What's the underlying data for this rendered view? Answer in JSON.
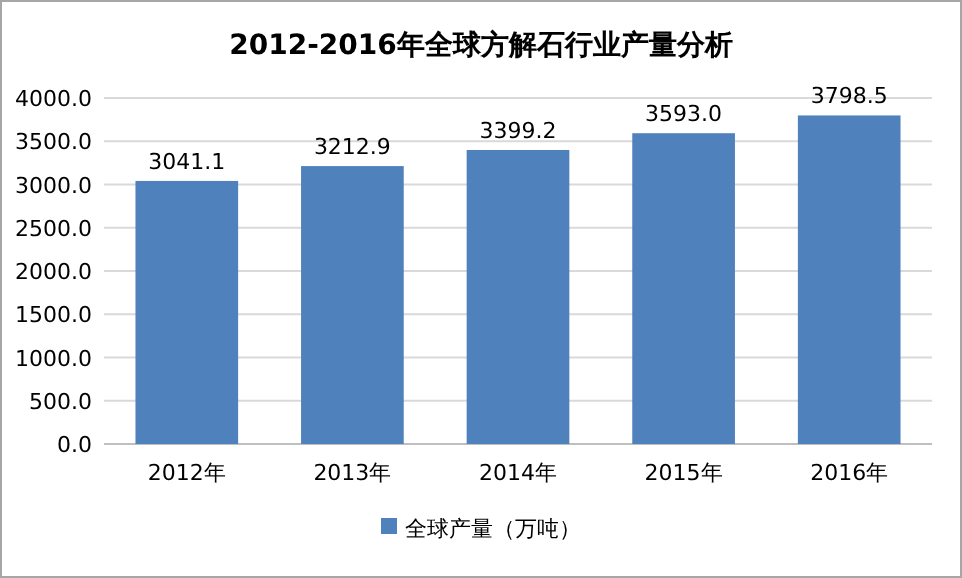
{
  "chart_data": {
    "type": "bar",
    "title": "2012-2016年全球方解石行业产量分析",
    "categories": [
      "2012年",
      "2013年",
      "2014年",
      "2015年",
      "2016年"
    ],
    "series": [
      {
        "name": "全球产量（万吨）",
        "color": "#4f81bd",
        "values": [
          3041.1,
          3212.9,
          3399.2,
          3593.0,
          3798.5
        ]
      }
    ],
    "value_labels": [
      "3041.1",
      "3212.9",
      "3399.2",
      "3593.0",
      "3798.5"
    ],
    "ylim": [
      0,
      4000
    ],
    "yticks": [
      {
        "value": 0,
        "label": "0.0"
      },
      {
        "value": 500,
        "label": "500.0"
      },
      {
        "value": 1000,
        "label": "1000.0"
      },
      {
        "value": 1500,
        "label": "1500.0"
      },
      {
        "value": 2000,
        "label": "2000.0"
      },
      {
        "value": 2500,
        "label": "2500.0"
      },
      {
        "value": 3000,
        "label": "3000.0"
      },
      {
        "value": 3500,
        "label": "3500.0"
      },
      {
        "value": 4000,
        "label": "4000.0"
      }
    ],
    "grid": "y",
    "legend": "bottom"
  }
}
